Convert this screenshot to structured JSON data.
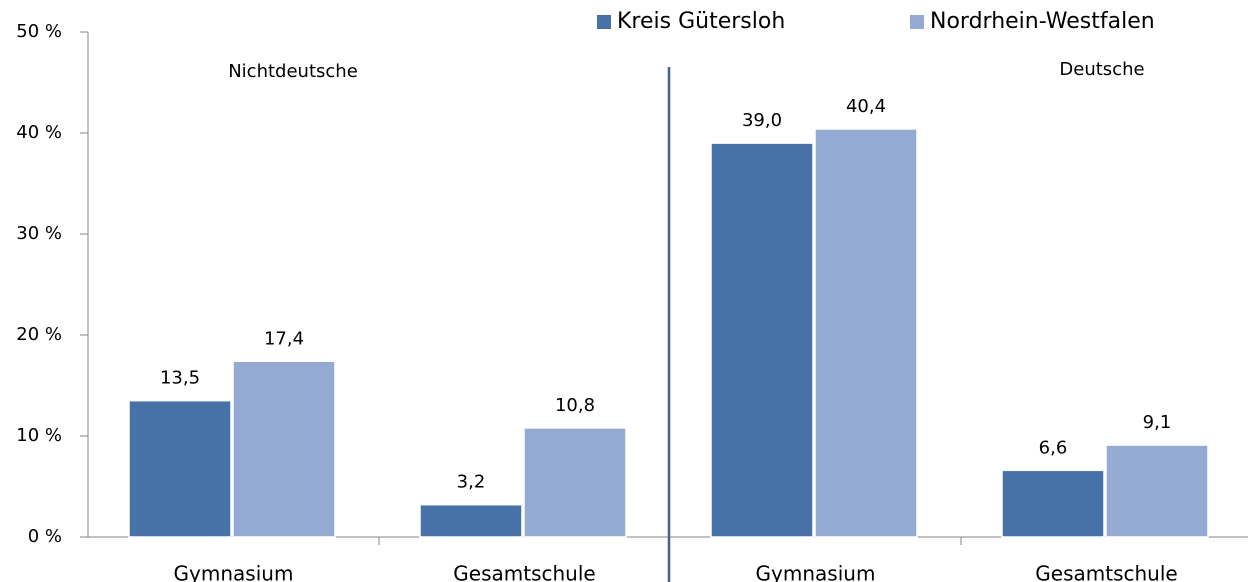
{
  "chart_data": {
    "type": "bar",
    "categories": [
      "Gymnasium",
      "Gesamtschule",
      "Gymnasium",
      "Gesamtschule"
    ],
    "annotations": [
      "Nichtdeutsche",
      "Deutsche"
    ],
    "series": [
      {
        "name": "Kreis Gütersloh",
        "color": "#4672a8",
        "values": [
          13.5,
          3.2,
          39.0,
          6.6
        ],
        "value_labels": [
          "13,5",
          "3,2",
          "39,0",
          "6,6"
        ]
      },
      {
        "name": "Nordrhein-Westfalen",
        "color": "#95aad3",
        "values": [
          17.4,
          10.8,
          40.4,
          9.1
        ],
        "value_labels": [
          "17,4",
          "10,8",
          "40,4",
          "9,1"
        ]
      }
    ],
    "ylim": [
      0,
      50
    ],
    "yticks": [
      {
        "value": 0,
        "label": "0 %"
      },
      {
        "value": 10,
        "label": "10 %"
      },
      {
        "value": 20,
        "label": "20 %"
      },
      {
        "value": 30,
        "label": "30 %"
      },
      {
        "value": 40,
        "label": "40 %"
      },
      {
        "value": 50,
        "label": "50 %"
      }
    ],
    "legend": "top"
  }
}
